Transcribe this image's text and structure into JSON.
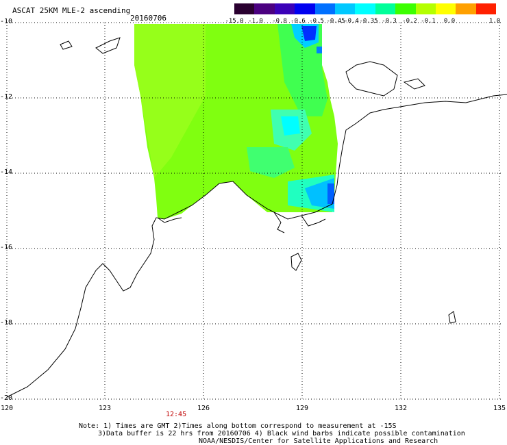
{
  "title": "ASCAT 25KM MLE-2 ascending",
  "date": "20160706",
  "colorbar": {
    "labels": [
      "-15.0",
      "-1.0",
      "-0.8",
      "-0.6",
      "-0.5",
      "-0.45",
      "-0.4",
      "-0.35",
      "-0.3",
      "-0.2",
      "-0.1",
      "0.0",
      "1.0"
    ],
    "colors": [
      "#2a0030",
      "#4b0080",
      "#3a00b8",
      "#0000f0",
      "#0070ff",
      "#00c8ff",
      "#00ffff",
      "#00ff9a",
      "#3cff00",
      "#b4ff00",
      "#ffff00",
      "#ffa000",
      "#ff2000"
    ]
  },
  "lat_labels": [
    "-10",
    "-12",
    "-14",
    "-16",
    "-18",
    "-20"
  ],
  "lon_labels": [
    "120",
    "123",
    "126",
    "129",
    "132",
    "135"
  ],
  "time_label": "12:45",
  "notes": [
    "Note: 1) Times are GMT 2)Times along bottom correspond to measurement at -15S",
    "3)Data buffer is 22 hrs from 20160706 4) Black wind barbs indicate possible contamination",
    "NOAA/NESDIS/Center for Satellite Applications and Research"
  ],
  "colors": {
    "green": "#7cff00",
    "lime": "#a0ff10",
    "cyan": "#00ffff",
    "blue": "#0030ff"
  }
}
